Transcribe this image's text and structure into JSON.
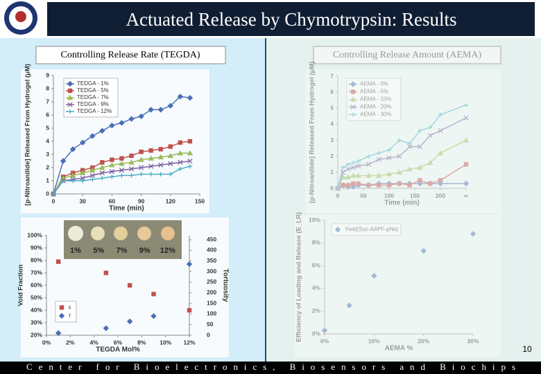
{
  "header": {
    "title": "Actuated Release by Chymotrypsin:  Results"
  },
  "left_heading": "Controlling Release Rate (TEGDA)",
  "right_heading": "Controlling Release Amount (AEMA)",
  "page_number": "10",
  "footer": "Center for Bioelectronics, Biosensors and Biochips",
  "chart_data": [
    {
      "type": "line",
      "x_label": "Time (min)",
      "y_label": "[p-Nitroanilide] Released From Hydrogel (μM)",
      "x": [
        0,
        10,
        20,
        30,
        40,
        50,
        60,
        70,
        80,
        90,
        100,
        110,
        120,
        130,
        140
      ],
      "series": [
        {
          "name": "TEDGA - 1%",
          "color": "#4a6fb5",
          "marker": "diamond",
          "values": [
            0,
            2.5,
            3.4,
            3.9,
            4.4,
            4.8,
            5.2,
            5.4,
            5.7,
            5.9,
            6.4,
            6.4,
            6.7,
            7.4,
            7.3
          ]
        },
        {
          "name": "TEDGA - 5%",
          "color": "#c0504d",
          "marker": "square",
          "values": [
            0,
            1.3,
            1.6,
            1.8,
            2.0,
            2.4,
            2.6,
            2.7,
            2.9,
            3.2,
            3.3,
            3.4,
            3.6,
            3.9,
            4.0
          ]
        },
        {
          "name": "TEDGA - 7%",
          "color": "#9bbb59",
          "marker": "triangle",
          "values": [
            0,
            1.2,
            1.4,
            1.6,
            1.8,
            2.0,
            2.2,
            2.3,
            2.4,
            2.6,
            2.7,
            2.8,
            2.9,
            3.1,
            3.1
          ]
        },
        {
          "name": "TEDGA - 9%",
          "color": "#7d60a0",
          "marker": "x",
          "values": [
            0,
            1.0,
            1.1,
            1.2,
            1.4,
            1.6,
            1.7,
            1.8,
            1.9,
            2.0,
            2.1,
            2.2,
            2.3,
            2.4,
            2.5
          ]
        },
        {
          "name": "TEDGA - 12%",
          "color": "#4bacc6",
          "marker": "plus",
          "values": [
            0,
            1.0,
            1.0,
            1.0,
            1.1,
            1.2,
            1.3,
            1.4,
            1.4,
            1.5,
            1.5,
            1.5,
            1.5,
            1.9,
            2.1
          ]
        }
      ],
      "xlim": [
        0,
        150
      ],
      "xticks": [
        0,
        30,
        60,
        90,
        120,
        150
      ],
      "ylim": [
        0,
        9
      ],
      "yticks": [
        0,
        1,
        2,
        3,
        4,
        5,
        6,
        7,
        8,
        9
      ],
      "grid": false,
      "legend": "upper left"
    },
    {
      "type": "scatter",
      "x_label": "TEGDA Mol%",
      "y_label": "Void Fraction",
      "y2_label": "Tortuosity",
      "image_labels": [
        "1%",
        "5%",
        "7%",
        "9%",
        "12%"
      ],
      "x": [
        1,
        5,
        7,
        9,
        12
      ],
      "series": [
        {
          "name": "ε",
          "color": "#c0504d",
          "marker": "square",
          "values": [
            79,
            70,
            60,
            53,
            40
          ]
        },
        {
          "name": "τ",
          "color": "#4a6fb5",
          "marker": "diamond",
          "axis": "y2",
          "values": [
            10,
            33,
            65,
            90,
            335
          ]
        }
      ],
      "xlim": [
        0,
        12
      ],
      "xticks": [
        {
          "value": 0,
          "label": "0%"
        },
        {
          "value": 2,
          "label": "2%"
        },
        {
          "value": 4,
          "label": "4%"
        },
        {
          "value": 6,
          "label": "6%"
        },
        {
          "value": 8,
          "label": "8%"
        },
        {
          "value": 10,
          "label": "10%"
        },
        {
          "value": 12,
          "label": "12%"
        }
      ],
      "ylim": [
        20,
        100
      ],
      "yticks": [
        {
          "value": 20,
          "label": "20%"
        },
        {
          "value": 30,
          "label": "30%"
        },
        {
          "value": 40,
          "label": "40%"
        },
        {
          "value": 50,
          "label": "50%"
        },
        {
          "value": 60,
          "label": "60%"
        },
        {
          "value": 70,
          "label": "70%"
        },
        {
          "value": 80,
          "label": "80%"
        },
        {
          "value": 90,
          "label": "90%"
        },
        {
          "value": 100,
          "label": "100%"
        }
      ],
      "y2lim": [
        0,
        470
      ],
      "y2ticks": [
        0,
        50,
        100,
        150,
        200,
        250,
        300,
        350,
        400,
        450
      ],
      "grid": false,
      "legend": "lower left"
    },
    {
      "type": "line",
      "x_label": "Time (min)",
      "y_label": "[p-Nitroanilide] Released From Hydrogel (μM)",
      "x": [
        0,
        10,
        20,
        30,
        40,
        60,
        80,
        100,
        120,
        140,
        160,
        180,
        200,
        250
      ],
      "series": [
        {
          "name": "AEMA - 0%",
          "color": "#4a6fb5",
          "marker": "diamond",
          "values": [
            0,
            0.2,
            0.1,
            0.1,
            0.2,
            0.2,
            0.3,
            0.3,
            0.3,
            0.3,
            0.3,
            0.3,
            0.3,
            0.3
          ]
        },
        {
          "name": "AEMA - 5%",
          "color": "#c0504d",
          "marker": "square",
          "values": [
            0,
            0.2,
            0.2,
            0.3,
            0.3,
            0.2,
            0.2,
            0.2,
            0.3,
            0.2,
            0.5,
            0.3,
            0.5,
            1.5
          ]
        },
        {
          "name": "AEMA - 10%",
          "color": "#9bbb59",
          "marker": "triangle",
          "values": [
            0,
            0.7,
            0.7,
            0.8,
            0.8,
            0.8,
            0.8,
            0.9,
            1.0,
            1.2,
            1.3,
            1.6,
            2.2,
            3.0
          ]
        },
        {
          "name": "AEMA - 20%",
          "color": "#7d60a0",
          "marker": "x",
          "values": [
            0,
            1.0,
            1.2,
            1.3,
            1.4,
            1.5,
            1.8,
            1.9,
            2.0,
            2.6,
            2.6,
            3.3,
            3.6,
            4.4
          ]
        },
        {
          "name": "AEMA - 30%",
          "color": "#4bacc6",
          "marker": "plus",
          "values": [
            0,
            1.3,
            1.5,
            1.6,
            1.7,
            2.0,
            2.2,
            2.4,
            3.0,
            2.8,
            3.6,
            3.8,
            4.6,
            5.2
          ]
        }
      ],
      "xlim": [
        0,
        250
      ],
      "xticks": [
        0,
        50,
        100,
        150,
        200,
        {
          "value": 250,
          "label": "∞"
        }
      ],
      "ylim": [
        0,
        7
      ],
      "yticks": [
        0,
        1,
        2,
        3,
        4,
        5,
        6,
        7
      ],
      "grid": false,
      "legend": "upper left"
    },
    {
      "type": "scatter",
      "x_label": "AEMA %",
      "y_label": "Efficiency of Loading and Release (E_LR)",
      "x": [
        0,
        5,
        10,
        20,
        30
      ],
      "series": [
        {
          "name": "Yield(Suc-AAPF-pNa)",
          "color": "#4a6fb5",
          "marker": "diamond",
          "values": [
            0.3,
            2.5,
            5.1,
            7.3,
            8.8
          ]
        }
      ],
      "xlim": [
        0,
        30
      ],
      "xticks": [
        {
          "value": 0,
          "label": "0%"
        },
        {
          "value": 10,
          "label": "10%"
        },
        {
          "value": 20,
          "label": "20%"
        },
        {
          "value": 30,
          "label": "30%"
        }
      ],
      "ylim": [
        0,
        10
      ],
      "yticks": [
        {
          "value": 0,
          "label": "0%"
        },
        {
          "value": 2,
          "label": "2%"
        },
        {
          "value": 4,
          "label": "4%"
        },
        {
          "value": 6,
          "label": "6%"
        },
        {
          "value": 8,
          "label": "8%"
        },
        {
          "value": 10,
          "label": "10%"
        }
      ],
      "grid": false,
      "legend": "upper left"
    }
  ]
}
